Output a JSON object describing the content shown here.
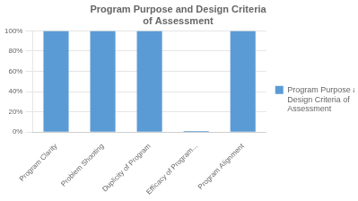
{
  "chart_data": {
    "type": "bar",
    "title": "Program Purpose and Design Criteria\nof Assessment",
    "categories": [
      "Program Clarity",
      "Problem Shooting",
      "Duplicity of Program",
      "Efficacy of Program...",
      "Program Alignment"
    ],
    "series": [
      {
        "name": "Program Purpose and\nDesign Criteria of\nAssessment",
        "color": "#5B9BD5",
        "values": [
          100,
          100,
          100,
          1,
          100
        ]
      }
    ],
    "ylim": [
      0,
      100
    ],
    "yticks": [
      {
        "value": 0,
        "label": "0%"
      },
      {
        "value": 20,
        "label": "20%"
      },
      {
        "value": 40,
        "label": "40%"
      },
      {
        "value": 60,
        "label": "60%"
      },
      {
        "value": 80,
        "label": "80%"
      },
      {
        "value": 100,
        "label": "100%"
      }
    ],
    "grid": true,
    "legend": "right"
  }
}
